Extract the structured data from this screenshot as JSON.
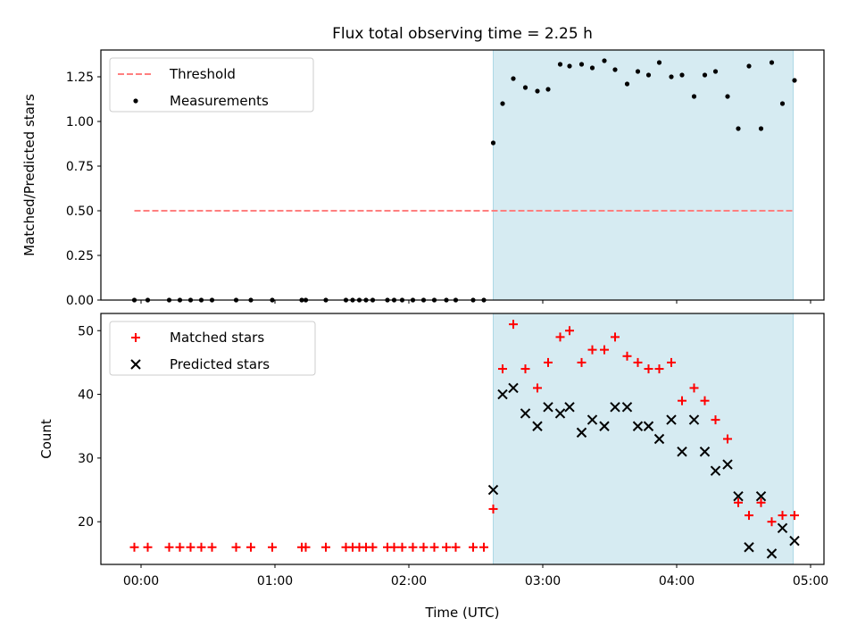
{
  "title": "Flux total observing time = 2.25 h",
  "colors": {
    "threshold": "#ff7f7f",
    "measurement": "#000000",
    "matched": "#ff0000",
    "predicted": "#000000",
    "shade": "#add8e6"
  },
  "chart_data": [
    {
      "type": "scatter",
      "ylabel": "Matched/Predicted stars",
      "xlim": [
        -0.3,
        5.1
      ],
      "ylim": [
        0,
        1.4
      ],
      "yticks": [
        0,
        0.25,
        0.5,
        0.75,
        1.0,
        1.25
      ],
      "ytick_labels": [
        "0.00",
        "0.25",
        "0.50",
        "0.75",
        "1.00",
        "1.25"
      ],
      "shaded_region": [
        2.63,
        4.87
      ],
      "legend_position": "upper-left",
      "threshold": {
        "name": "Threshold",
        "value": 0.5,
        "x_range": [
          -0.05,
          4.87
        ]
      },
      "series": [
        {
          "name": "Measurements",
          "x": [
            -0.05,
            0.05,
            0.21,
            0.29,
            0.37,
            0.45,
            0.53,
            0.71,
            0.82,
            0.98,
            1.2,
            1.23,
            1.38,
            1.53,
            1.58,
            1.63,
            1.68,
            1.73,
            1.84,
            1.89,
            1.95,
            2.03,
            2.11,
            2.19,
            2.28,
            2.35,
            2.48,
            2.56,
            2.63,
            2.7,
            2.78,
            2.87,
            2.96,
            3.04,
            3.13,
            3.2,
            3.29,
            3.37,
            3.46,
            3.54,
            3.63,
            3.71,
            3.79,
            3.87,
            3.96,
            4.04,
            4.13,
            4.21,
            4.29,
            4.38,
            4.46,
            4.54,
            4.63,
            4.71,
            4.79,
            4.88
          ],
          "y": [
            0,
            0,
            0,
            0,
            0,
            0,
            0,
            0,
            0,
            0,
            0,
            0,
            0,
            0,
            0,
            0,
            0,
            0,
            0,
            0,
            0,
            0,
            0,
            0,
            0,
            0,
            0,
            0,
            0.88,
            1.1,
            1.24,
            1.19,
            1.17,
            1.18,
            1.32,
            1.31,
            1.32,
            1.3,
            1.34,
            1.29,
            1.21,
            1.28,
            1.26,
            1.33,
            1.25,
            1.26,
            1.14,
            1.26,
            1.28,
            1.14,
            0.96,
            1.31,
            0.96,
            1.33,
            1.1,
            1.23
          ]
        }
      ]
    },
    {
      "type": "scatter",
      "xlabel": "Time (UTC)",
      "ylabel": "Count",
      "xlim": [
        -0.3,
        5.1
      ],
      "ylim": [
        13.3,
        52.7
      ],
      "yticks": [
        20,
        30,
        40,
        50
      ],
      "ytick_labels": [
        "20",
        "30",
        "40",
        "50"
      ],
      "xticks": [
        0,
        1,
        2,
        3,
        4,
        5
      ],
      "xtick_labels": [
        "00:00",
        "01:00",
        "02:00",
        "03:00",
        "04:00",
        "05:00"
      ],
      "shaded_region": [
        2.63,
        4.87
      ],
      "legend_position": "upper-left",
      "series": [
        {
          "name": "Matched stars",
          "marker": "plus",
          "x": [
            -0.05,
            0.05,
            0.21,
            0.29,
            0.37,
            0.45,
            0.53,
            0.71,
            0.82,
            0.98,
            1.2,
            1.23,
            1.38,
            1.53,
            1.58,
            1.63,
            1.68,
            1.73,
            1.84,
            1.89,
            1.95,
            2.03,
            2.11,
            2.19,
            2.28,
            2.35,
            2.48,
            2.56,
            2.63,
            2.7,
            2.78,
            2.87,
            2.96,
            3.04,
            3.13,
            3.2,
            3.29,
            3.37,
            3.46,
            3.54,
            3.63,
            3.71,
            3.79,
            3.87,
            3.96,
            4.04,
            4.13,
            4.21,
            4.29,
            4.38,
            4.46,
            4.54,
            4.63,
            4.71,
            4.79,
            4.88
          ],
          "y": [
            16,
            16,
            16,
            16,
            16,
            16,
            16,
            16,
            16,
            16,
            16,
            16,
            16,
            16,
            16,
            16,
            16,
            16,
            16,
            16,
            16,
            16,
            16,
            16,
            16,
            16,
            16,
            16,
            22,
            44,
            51,
            44,
            41,
            45,
            49,
            50,
            45,
            47,
            47,
            49,
            46,
            45,
            44,
            44,
            45,
            39,
            41,
            39,
            36,
            33,
            23,
            21,
            23,
            20,
            21,
            21
          ]
        },
        {
          "name": "Predicted stars",
          "marker": "x",
          "x": [
            2.63,
            2.7,
            2.78,
            2.87,
            2.96,
            3.04,
            3.13,
            3.2,
            3.29,
            3.37,
            3.46,
            3.54,
            3.63,
            3.71,
            3.79,
            3.87,
            3.96,
            4.04,
            4.13,
            4.21,
            4.29,
            4.38,
            4.46,
            4.54,
            4.63,
            4.71,
            4.79,
            4.88
          ],
          "y": [
            25,
            40,
            41,
            37,
            35,
            38,
            37,
            38,
            34,
            36,
            35,
            38,
            38,
            35,
            35,
            33,
            36,
            31,
            36,
            31,
            28,
            29,
            24,
            16,
            24,
            15,
            19,
            17
          ]
        }
      ]
    }
  ]
}
